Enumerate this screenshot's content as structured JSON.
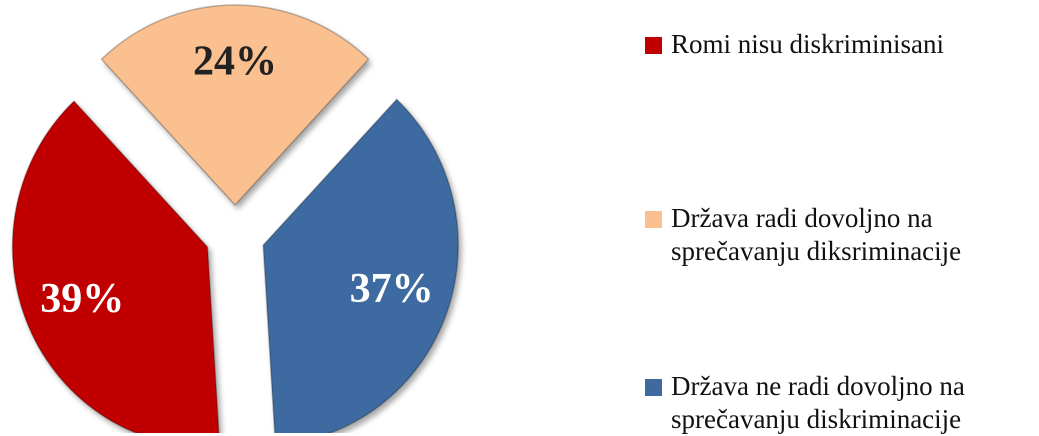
{
  "chart_data": {
    "type": "pie",
    "categories": [
      "Romi nisu diskriminisani",
      "Država radi dovoljno na sprečavanju diksriminacije",
      "Država ne radi dovoljno na sprečavanju diskriminacije"
    ],
    "values": [
      39,
      24,
      37
    ],
    "value_labels": [
      "39%",
      "24%",
      "37%"
    ],
    "colors": [
      "#c00000",
      "#fac090",
      "#3e6aa0"
    ],
    "legend": "right"
  }
}
